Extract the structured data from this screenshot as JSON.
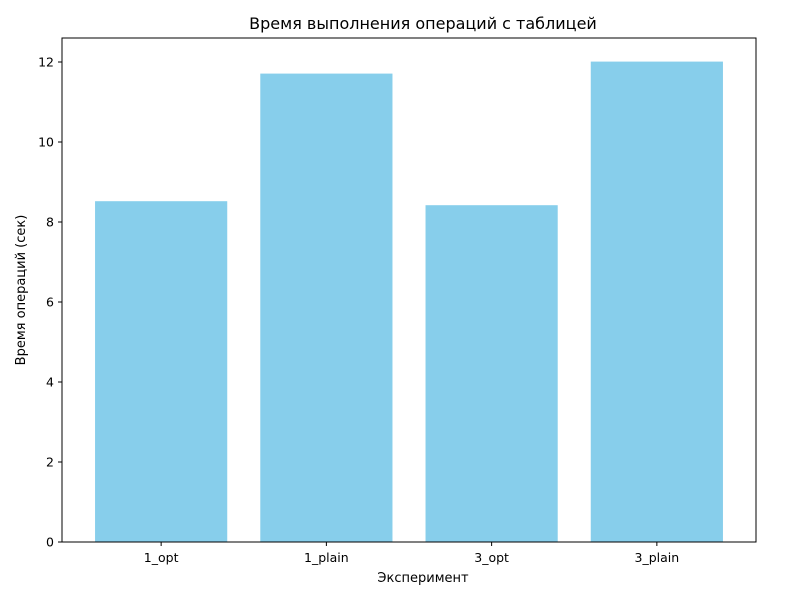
{
  "chart_data": {
    "type": "bar",
    "title": "Время выполнения операций с таблицей",
    "xlabel": "Эксперимент",
    "ylabel": "Время операций (сек)",
    "categories": [
      "1_opt",
      "1_plain",
      "3_opt",
      "3_plain"
    ],
    "values": [
      8.52,
      11.71,
      8.42,
      12.01
    ],
    "ylim": [
      0,
      12.6
    ],
    "yticks": [
      0,
      2,
      4,
      6,
      8,
      10,
      12
    ],
    "ytick_labels": [
      "0",
      "2",
      "4",
      "6",
      "8",
      "10",
      "12"
    ],
    "bar_color": "#87ceeb",
    "grid": false,
    "legend": "none"
  }
}
